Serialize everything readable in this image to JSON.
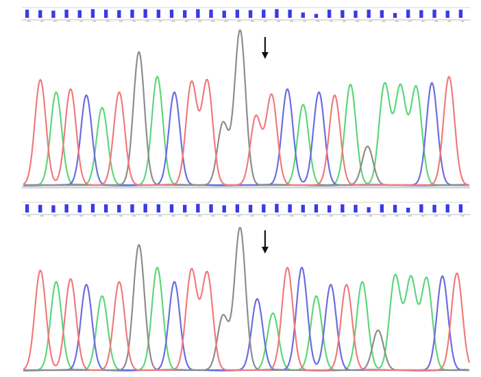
{
  "colors": {
    "A": "#5cd67a",
    "C": "#6b6be0",
    "G": "#8c8c8c",
    "T": "#f07a7a",
    "qv_bar": "#3a3ae6",
    "baseline": "#9aa6e8",
    "arrow": "#111111"
  },
  "chart_data": [
    {
      "type": "line",
      "title": "",
      "xlabel": "",
      "ylabel": "",
      "grid": false,
      "legend": "none",
      "x_range": [
        0,
        34
      ],
      "y_range": [
        0,
        100
      ],
      "annotation": {
        "type": "down-arrow",
        "x": 18.4,
        "icon": "down-arrow-icon"
      },
      "quality_bars": [
        0.85,
        0.8,
        0.75,
        0.85,
        0.8,
        0.9,
        0.85,
        0.8,
        0.85,
        0.9,
        0.85,
        0.85,
        0.8,
        0.9,
        0.85,
        0.75,
        0.85,
        0.8,
        0.85,
        0.9,
        0.85,
        0.55,
        0.4,
        0.85,
        0.8,
        0.75,
        0.85,
        0.8,
        0.5,
        0.85,
        0.8,
        0.85,
        0.75,
        0.85
      ],
      "peaks": [
        {
          "b": "T",
          "x": 1.3,
          "h": 68
        },
        {
          "b": "A",
          "x": 2.5,
          "h": 60
        },
        {
          "b": "T",
          "x": 3.6,
          "h": 62
        },
        {
          "b": "C",
          "x": 4.8,
          "h": 58
        },
        {
          "b": "A",
          "x": 6.0,
          "h": 50
        },
        {
          "b": "T",
          "x": 7.3,
          "h": 60
        },
        {
          "b": "G",
          "x": 8.8,
          "h": 86
        },
        {
          "b": "A",
          "x": 10.2,
          "h": 70
        },
        {
          "b": "C",
          "x": 11.5,
          "h": 60
        },
        {
          "b": "T",
          "x": 12.8,
          "h": 66
        },
        {
          "b": "T",
          "x": 14.0,
          "h": 67
        },
        {
          "b": "G",
          "x": 15.2,
          "h": 40
        },
        {
          "b": "G",
          "x": 16.5,
          "h": 100
        },
        {
          "b": "T",
          "x": 17.7,
          "h": 44
        },
        {
          "b": "T",
          "x": 18.9,
          "h": 58
        },
        {
          "b": "C",
          "x": 20.1,
          "h": 62
        },
        {
          "b": "A",
          "x": 21.3,
          "h": 52
        },
        {
          "b": "C",
          "x": 22.5,
          "h": 60
        },
        {
          "b": "T",
          "x": 23.7,
          "h": 58
        },
        {
          "b": "A",
          "x": 24.9,
          "h": 65
        },
        {
          "b": "G",
          "x": 26.2,
          "h": 25
        },
        {
          "b": "A",
          "x": 27.5,
          "h": 65
        },
        {
          "b": "A",
          "x": 28.7,
          "h": 63
        },
        {
          "b": "A",
          "x": 29.9,
          "h": 63
        },
        {
          "b": "C",
          "x": 31.1,
          "h": 66
        },
        {
          "b": "T",
          "x": 32.4,
          "h": 70
        }
      ]
    },
    {
      "type": "line",
      "title": "",
      "xlabel": "",
      "ylabel": "",
      "grid": false,
      "legend": "none",
      "x_range": [
        0,
        34
      ],
      "y_range": [
        0,
        100
      ],
      "annotation": {
        "type": "down-arrow",
        "x": 18.4,
        "icon": "down-arrow-icon"
      },
      "quality_bars": [
        0.85,
        0.8,
        0.75,
        0.85,
        0.8,
        0.9,
        0.85,
        0.8,
        0.85,
        0.9,
        0.85,
        0.85,
        0.8,
        0.9,
        0.85,
        0.75,
        0.85,
        0.8,
        0.85,
        0.9,
        0.85,
        0.8,
        0.85,
        0.75,
        0.85,
        0.8,
        0.55,
        0.85,
        0.8,
        0.5,
        0.85,
        0.8,
        0.85,
        0.85
      ],
      "peaks": [
        {
          "b": "T",
          "x": 1.3,
          "h": 70
        },
        {
          "b": "A",
          "x": 2.5,
          "h": 62
        },
        {
          "b": "T",
          "x": 3.6,
          "h": 64
        },
        {
          "b": "C",
          "x": 4.8,
          "h": 60
        },
        {
          "b": "A",
          "x": 6.0,
          "h": 52
        },
        {
          "b": "T",
          "x": 7.3,
          "h": 62
        },
        {
          "b": "G",
          "x": 8.8,
          "h": 88
        },
        {
          "b": "A",
          "x": 10.2,
          "h": 72
        },
        {
          "b": "C",
          "x": 11.5,
          "h": 62
        },
        {
          "b": "T",
          "x": 12.8,
          "h": 70
        },
        {
          "b": "T",
          "x": 14.0,
          "h": 68
        },
        {
          "b": "G",
          "x": 15.2,
          "h": 38
        },
        {
          "b": "G",
          "x": 16.5,
          "h": 100
        },
        {
          "b": "C",
          "x": 17.8,
          "h": 50
        },
        {
          "b": "A",
          "x": 19.0,
          "h": 40
        },
        {
          "b": "T",
          "x": 20.1,
          "h": 72
        },
        {
          "b": "C",
          "x": 21.2,
          "h": 72
        },
        {
          "b": "A",
          "x": 22.3,
          "h": 52
        },
        {
          "b": "C",
          "x": 23.4,
          "h": 60
        },
        {
          "b": "T",
          "x": 24.6,
          "h": 60
        },
        {
          "b": "A",
          "x": 25.8,
          "h": 62
        },
        {
          "b": "G",
          "x": 27.0,
          "h": 28
        },
        {
          "b": "A",
          "x": 28.3,
          "h": 66
        },
        {
          "b": "A",
          "x": 29.5,
          "h": 64
        },
        {
          "b": "A",
          "x": 30.7,
          "h": 64
        },
        {
          "b": "C",
          "x": 31.9,
          "h": 66
        },
        {
          "b": "T",
          "x": 33.0,
          "h": 68
        }
      ]
    }
  ]
}
